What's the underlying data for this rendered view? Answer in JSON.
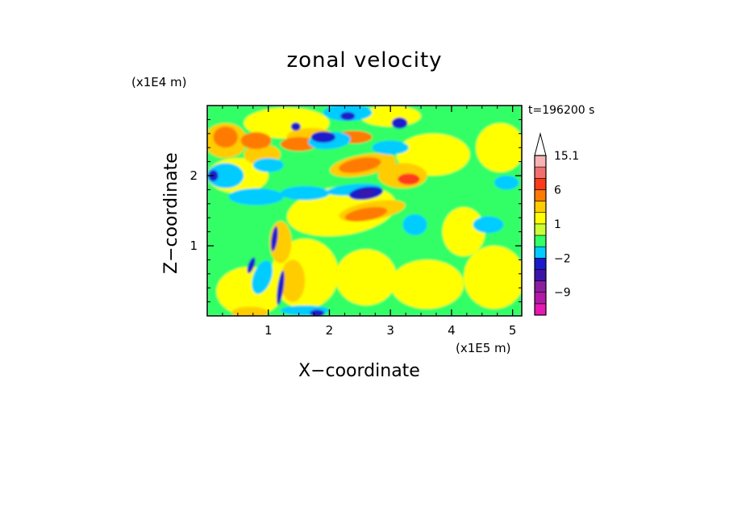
{
  "chart_data": {
    "type": "heatmap",
    "title": "zonal velocity",
    "xlabel": "X−coordinate",
    "ylabel": "Z−coordinate",
    "x_unit": "(x1E5 m)",
    "y_unit": "(x1E4 m)",
    "time_label": "t=196200 s",
    "xlim": [
      0,
      5.15
    ],
    "ylim": [
      0,
      3.0
    ],
    "x_ticks": [
      "1",
      "2",
      "3",
      "4",
      "5"
    ],
    "y_ticks": [
      "1",
      "2"
    ],
    "colorbar_ticks": [
      "15.1",
      "6",
      "1",
      "−2",
      "−9"
    ],
    "colorbar_levels": [
      {
        "color": "#e619b3",
        "label": ""
      },
      {
        "color": "#b319a6",
        "label": "−9"
      },
      {
        "color": "#8c1ea0",
        "label": ""
      },
      {
        "color": "#3b13aa",
        "label": ""
      },
      {
        "color": "#1a1acc",
        "label": "−2"
      },
      {
        "color": "#00ccff",
        "label": ""
      },
      {
        "color": "#33ff66",
        "label": ""
      },
      {
        "color": "#ccff33",
        "label": "1"
      },
      {
        "color": "#ffff00",
        "label": ""
      },
      {
        "color": "#ffcc00",
        "label": ""
      },
      {
        "color": "#ff7a00",
        "label": "6"
      },
      {
        "color": "#ff3a1a",
        "label": ""
      },
      {
        "color": "#f07070",
        "label": ""
      },
      {
        "color": "#f7b3b3",
        "label": "15.1"
      }
    ],
    "colorbar_extension_color": "#ffffff"
  }
}
